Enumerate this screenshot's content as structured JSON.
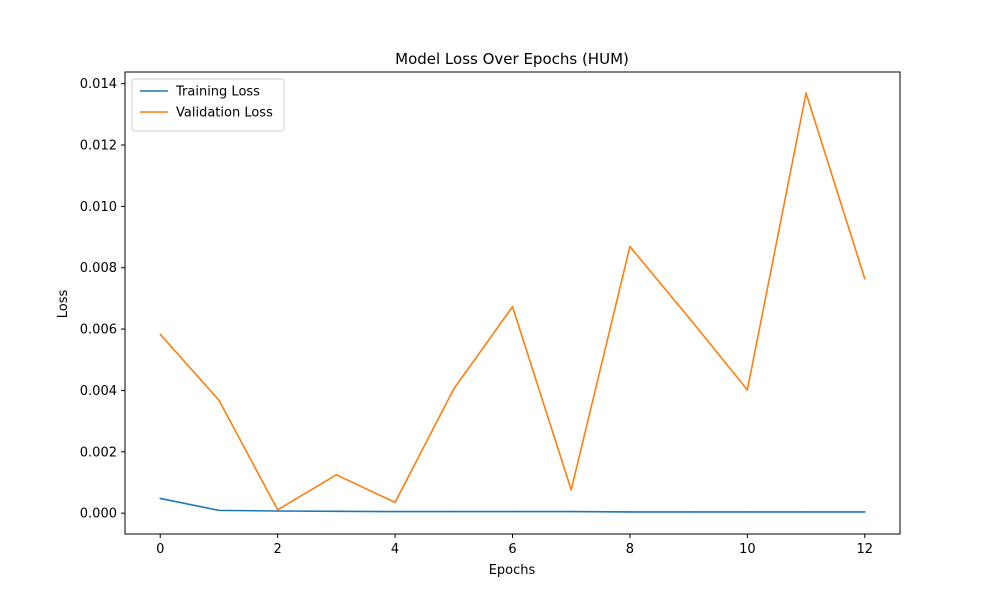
{
  "chart_data": {
    "type": "line",
    "title": "Model Loss Over Epochs (HUM)",
    "xlabel": "Epochs",
    "ylabel": "Loss",
    "xlim": [
      -0.6,
      12.6
    ],
    "ylim": [
      -0.00068,
      0.01438
    ],
    "x_ticks": [
      0,
      2,
      4,
      6,
      8,
      10,
      12
    ],
    "y_ticks": [
      0.0,
      0.002,
      0.004,
      0.006,
      0.008,
      0.01,
      0.012,
      0.014
    ],
    "y_tick_decimals": 3,
    "grid": false,
    "legend_position": "upper-left",
    "x": [
      0,
      1,
      2,
      3,
      4,
      5,
      6,
      7,
      8,
      9,
      10,
      11,
      12
    ],
    "series": [
      {
        "name": "Training Loss",
        "color": "#1f77b4",
        "values": [
          0.00048,
          9e-05,
          7e-05,
          6e-05,
          5e-05,
          5e-05,
          5e-05,
          5e-05,
          4e-05,
          4e-05,
          4e-05,
          4e-05,
          4e-05
        ]
      },
      {
        "name": "Validation Loss",
        "color": "#ff7f0e",
        "values": [
          0.00583,
          0.00368,
          0.00011,
          0.00125,
          0.00035,
          0.00405,
          0.00673,
          0.00076,
          0.00869,
          0.00638,
          0.00402,
          0.01369,
          0.00764
        ]
      }
    ]
  }
}
